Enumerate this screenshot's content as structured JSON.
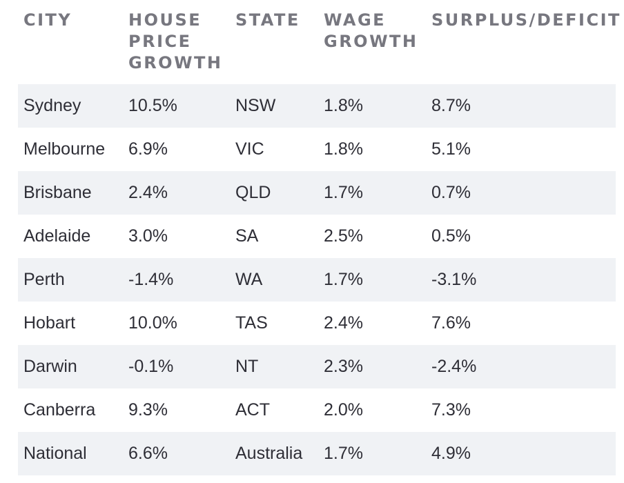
{
  "table": {
    "headers": {
      "city": "CITY",
      "house_price_growth": "HOUSE\nPRICE\nGROWTH",
      "state": "STATE",
      "wage_growth": "WAGE\nGROWTH",
      "surplus_deficit": "SURPLUS/DEFICIT"
    },
    "rows": [
      {
        "city": "Sydney",
        "house_price_growth": "10.5%",
        "state": "NSW",
        "wage_growth": "1.8%",
        "surplus_deficit": "8.7%"
      },
      {
        "city": "Melbourne",
        "house_price_growth": "6.9%",
        "state": "VIC",
        "wage_growth": "1.8%",
        "surplus_deficit": "5.1%"
      },
      {
        "city": "Brisbane",
        "house_price_growth": "2.4%",
        "state": "QLD",
        "wage_growth": "1.7%",
        "surplus_deficit": "0.7%"
      },
      {
        "city": "Adelaide",
        "house_price_growth": "3.0%",
        "state": "SA",
        "wage_growth": "2.5%",
        "surplus_deficit": "0.5%"
      },
      {
        "city": "Perth",
        "house_price_growth": "-1.4%",
        "state": "WA",
        "wage_growth": "1.7%",
        "surplus_deficit": "-3.1%"
      },
      {
        "city": "Hobart",
        "house_price_growth": "10.0%",
        "state": "TAS",
        "wage_growth": "2.4%",
        "surplus_deficit": "7.6%"
      },
      {
        "city": "Darwin",
        "house_price_growth": "-0.1%",
        "state": "NT",
        "wage_growth": "2.3%",
        "surplus_deficit": "-2.4%"
      },
      {
        "city": "Canberra",
        "house_price_growth": "9.3%",
        "state": "ACT",
        "wage_growth": "2.0%",
        "surplus_deficit": "7.3%"
      },
      {
        "city": "National",
        "house_price_growth": "6.6%",
        "state": "Australia",
        "wage_growth": "1.7%",
        "surplus_deficit": "4.9%"
      }
    ]
  },
  "colors": {
    "header_text": "#77777f",
    "body_text": "#2e2e36",
    "shaded_row": "#f0f2f5"
  }
}
